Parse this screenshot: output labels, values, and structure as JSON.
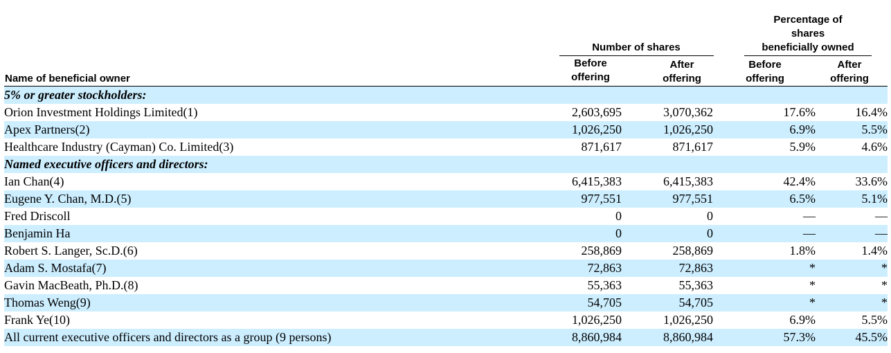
{
  "header": {
    "name_col": "Name of beneficial owner",
    "shares_group": "Number of shares",
    "pct_group_lines": [
      "Percentage of",
      "shares",
      "beneficially owned"
    ],
    "before_lines": [
      "Before",
      "offering"
    ],
    "after_lines": [
      "After",
      "offering"
    ]
  },
  "rows": [
    {
      "name": "5% or greater stockholders:",
      "section": true,
      "shaded": true,
      "shares_before": "",
      "shares_after": "",
      "pct_before": "",
      "pct_after": ""
    },
    {
      "name": "Orion Investment Holdings Limited(1)",
      "section": false,
      "shaded": false,
      "shares_before": "2,603,695",
      "shares_after": "3,070,362",
      "pct_before": "17.6%",
      "pct_after": "16.4%"
    },
    {
      "name": "Apex Partners(2)",
      "section": false,
      "shaded": true,
      "shares_before": "1,026,250",
      "shares_after": "1,026,250",
      "pct_before": "6.9%",
      "pct_after": "5.5%"
    },
    {
      "name": "Healthcare Industry (Cayman) Co. Limited(3)",
      "section": false,
      "shaded": false,
      "shares_before": "871,617",
      "shares_after": "871,617",
      "pct_before": "5.9%",
      "pct_after": "4.6%"
    },
    {
      "name": "Named executive officers and directors:",
      "section": true,
      "shaded": true,
      "shares_before": "",
      "shares_after": "",
      "pct_before": "",
      "pct_after": ""
    },
    {
      "name": "Ian Chan(4)",
      "section": false,
      "shaded": false,
      "shares_before": "6,415,383",
      "shares_after": "6,415,383",
      "pct_before": "42.4%",
      "pct_after": "33.6%"
    },
    {
      "name": "Eugene Y. Chan, M.D.(5)",
      "section": false,
      "shaded": true,
      "shares_before": "977,551",
      "shares_after": "977,551",
      "pct_before": "6.5%",
      "pct_after": "5.1%"
    },
    {
      "name": "Fred Driscoll",
      "section": false,
      "shaded": false,
      "shares_before": "0",
      "shares_after": "0",
      "pct_before": "—",
      "pct_after": "—"
    },
    {
      "name": "Benjamin Ha",
      "section": false,
      "shaded": true,
      "shares_before": "0",
      "shares_after": "0",
      "pct_before": "—",
      "pct_after": "—"
    },
    {
      "name": "Robert S. Langer, Sc.D.(6)",
      "section": false,
      "shaded": false,
      "shares_before": "258,869",
      "shares_after": "258,869",
      "pct_before": "1.8%",
      "pct_after": "1.4%"
    },
    {
      "name": "Adam S. Mostafa(7)",
      "section": false,
      "shaded": true,
      "shares_before": "72,863",
      "shares_after": "72,863",
      "pct_before": "*",
      "pct_after": "*"
    },
    {
      "name": "Gavin MacBeath, Ph.D.(8)",
      "section": false,
      "shaded": false,
      "shares_before": "55,363",
      "shares_after": "55,363",
      "pct_before": "*",
      "pct_after": "*"
    },
    {
      "name": "Thomas Weng(9)",
      "section": false,
      "shaded": true,
      "shares_before": "54,705",
      "shares_after": "54,705",
      "pct_before": "*",
      "pct_after": "*"
    },
    {
      "name": "Frank Ye(10)",
      "section": false,
      "shaded": false,
      "shares_before": "1,026,250",
      "shares_after": "1,026,250",
      "pct_before": "6.9%",
      "pct_after": "5.5%"
    },
    {
      "name": "All current executive officers and directors as a group (9 persons)",
      "section": false,
      "shaded": true,
      "shares_before": "8,860,984",
      "shares_after": "8,860,984",
      "pct_before": "57.3%",
      "pct_after": "45.5%"
    }
  ]
}
